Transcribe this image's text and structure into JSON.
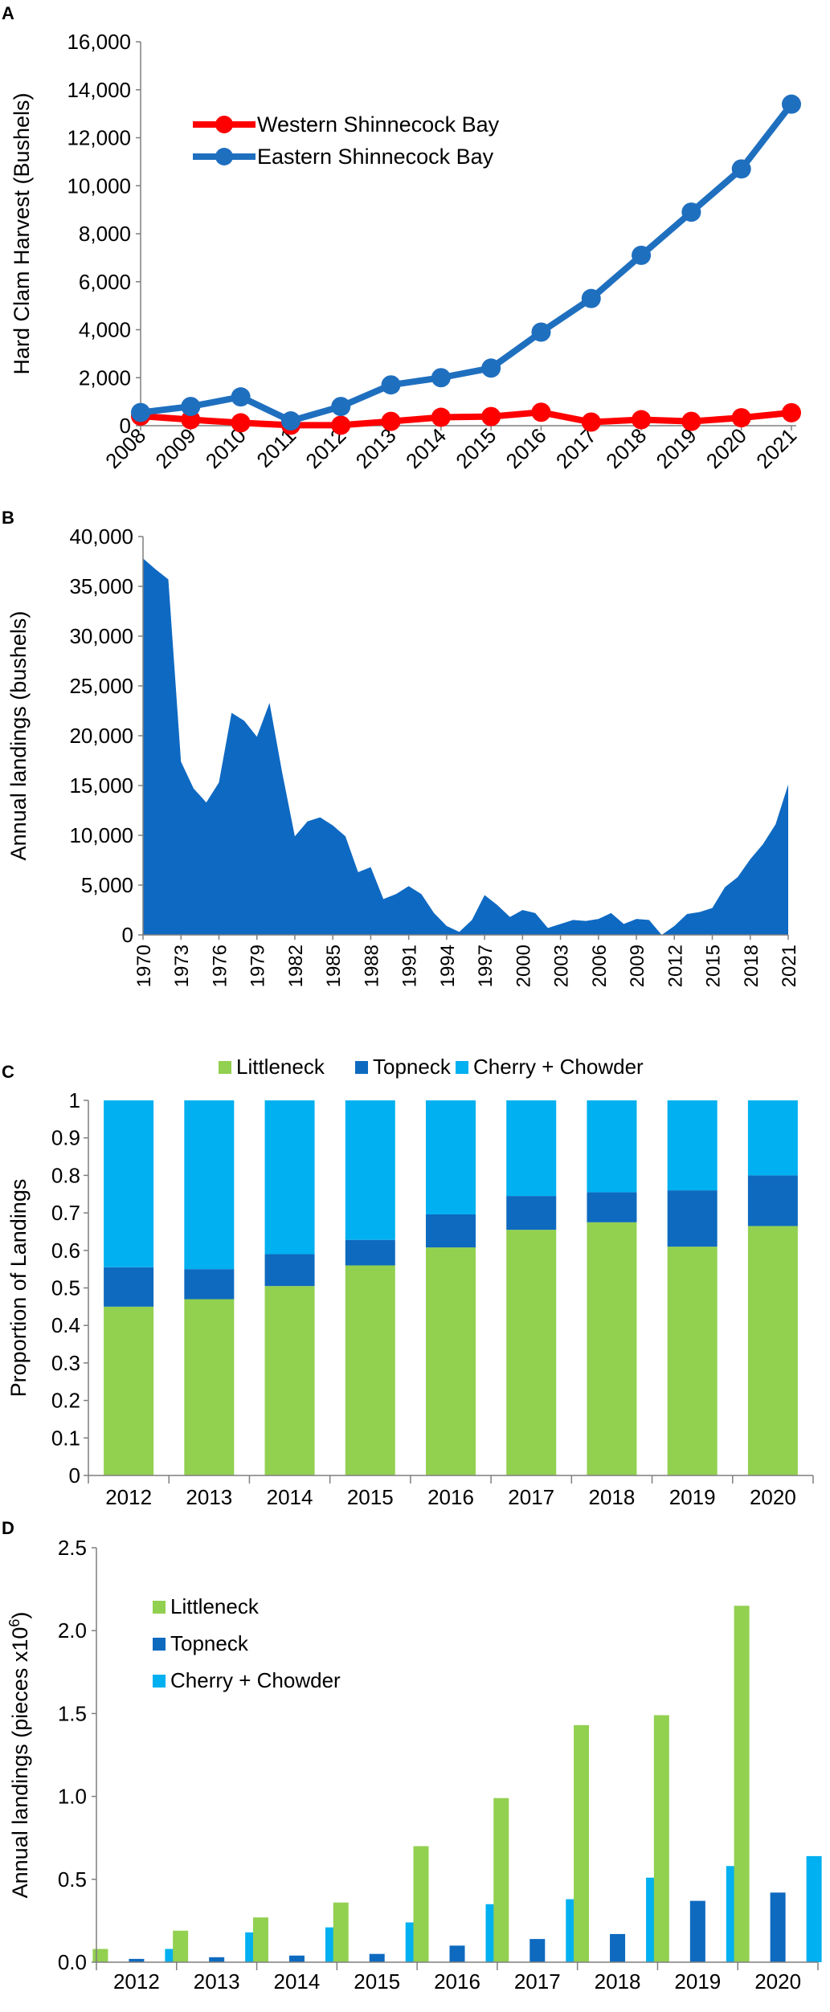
{
  "panels": [
    {
      "label": "A"
    },
    {
      "label": "B"
    },
    {
      "label": "C"
    },
    {
      "label": "D"
    }
  ],
  "chart_data": [
    {
      "type": "line",
      "ylabel": "Hard Clam Harvest (Bushels)",
      "ylim": [
        0,
        16000
      ],
      "yticks": [
        "0",
        "2,000",
        "4,000",
        "6,000",
        "8,000",
        "10,000",
        "12,000",
        "14,000",
        "16,000"
      ],
      "x": [
        "2008",
        "2009",
        "2010",
        "2011",
        "2012",
        "2013",
        "2014",
        "2015",
        "2016",
        "2017",
        "2018",
        "2019",
        "2020",
        "2021"
      ],
      "legend_position": "top-left",
      "series": [
        {
          "name": "Western Shinnecock Bay",
          "color": "#ff0000",
          "values": [
            400,
            250,
            120,
            20,
            20,
            180,
            350,
            380,
            560,
            150,
            250,
            180,
            330,
            540
          ]
        },
        {
          "name": "Eastern Shinnecock Bay",
          "color": "#1f6fbf",
          "values": [
            550,
            800,
            1200,
            200,
            800,
            1700,
            2000,
            2400,
            3900,
            5300,
            7100,
            8900,
            10700,
            13400
          ]
        }
      ]
    },
    {
      "type": "area",
      "ylabel": "Annual landings (bushels)",
      "ylim": [
        0,
        40000
      ],
      "yticks": [
        "0",
        "5,000",
        "10,000",
        "15,000",
        "20,000",
        "25,000",
        "30,000",
        "35,000",
        "40,000"
      ],
      "xlim": [
        1970,
        2021
      ],
      "xticks": [
        "1970",
        "1973",
        "1976",
        "1979",
        "1982",
        "1985",
        "1988",
        "1991",
        "1994",
        "1997",
        "2000",
        "2003",
        "2006",
        "2009",
        "2012",
        "2015",
        "2018",
        "2021"
      ],
      "color": "#0e69c2",
      "x": [
        1970,
        1971,
        1972,
        1973,
        1974,
        1975,
        1976,
        1977,
        1978,
        1979,
        1980,
        1981,
        1982,
        1983,
        1984,
        1985,
        1986,
        1987,
        1988,
        1989,
        1990,
        1991,
        1992,
        1993,
        1994,
        1995,
        1996,
        1997,
        1998,
        1999,
        2000,
        2001,
        2002,
        2003,
        2004,
        2005,
        2006,
        2007,
        2008,
        2009,
        2010,
        2011,
        2012,
        2013,
        2014,
        2015,
        2016,
        2017,
        2018,
        2019,
        2020,
        2021
      ],
      "values": [
        37800,
        36700,
        35700,
        17400,
        14700,
        13300,
        15300,
        22300,
        21500,
        19900,
        23300,
        16300,
        9900,
        11400,
        11800,
        11000,
        9900,
        6300,
        6800,
        3600,
        4100,
        4900,
        4100,
        2200,
        900,
        300,
        1500,
        4000,
        3000,
        1800,
        2500,
        2200,
        700,
        1100,
        1500,
        1400,
        1600,
        2200,
        1100,
        1600,
        1500,
        0,
        900,
        2100,
        2300,
        2700,
        4800,
        5800,
        7600,
        9100,
        11100,
        15100
      ]
    },
    {
      "type": "bar",
      "stacked": true,
      "ylabel": "Proportion of Landings",
      "ylim": [
        0,
        1
      ],
      "yticks": [
        "0",
        "0.1",
        "0.2",
        "0.3",
        "0.4",
        "0.5",
        "0.6",
        "0.7",
        "0.8",
        "0.9",
        "1"
      ],
      "categories": [
        "2012",
        "2013",
        "2014",
        "2015",
        "2016",
        "2017",
        "2018",
        "2019",
        "2020"
      ],
      "legend_position": "top",
      "series": [
        {
          "name": "Littleneck",
          "color": "#92d050",
          "values": [
            0.45,
            0.47,
            0.505,
            0.56,
            0.608,
            0.655,
            0.675,
            0.61,
            0.665
          ]
        },
        {
          "name": "Topneck",
          "color": "#0e6abf",
          "values": [
            0.105,
            0.08,
            0.085,
            0.068,
            0.088,
            0.09,
            0.08,
            0.15,
            0.135
          ]
        },
        {
          "name": "Cherry + Chowder",
          "color": "#00b0f0",
          "values": [
            0.445,
            0.45,
            0.41,
            0.372,
            0.304,
            0.255,
            0.245,
            0.24,
            0.2
          ]
        }
      ]
    },
    {
      "type": "bar",
      "ylabel": "Annual landings (pieces x10",
      "ylabel_sup": "6",
      "ylabel_end": ")",
      "ylim": [
        0,
        2.5
      ],
      "yticks": [
        "0.0",
        "0.5",
        "1.0",
        "1.5",
        "2.0",
        "2.5"
      ],
      "categories": [
        "2012",
        "2013",
        "2014",
        "2015",
        "2016",
        "2017",
        "2018",
        "2019",
        "2020"
      ],
      "legend_position": "top-left",
      "series": [
        {
          "name": "Littleneck",
          "color": "#92d050",
          "values": [
            0.08,
            0.19,
            0.27,
            0.36,
            0.7,
            0.99,
            1.43,
            1.49,
            2.15
          ]
        },
        {
          "name": "Topneck",
          "color": "#0e6abf",
          "values": [
            0.02,
            0.03,
            0.04,
            0.05,
            0.1,
            0.14,
            0.17,
            0.37,
            0.42
          ]
        },
        {
          "name": "Cherry + Chowder",
          "color": "#00b0f0",
          "values": [
            0.08,
            0.18,
            0.21,
            0.24,
            0.35,
            0.38,
            0.51,
            0.58,
            0.64
          ]
        }
      ]
    }
  ]
}
